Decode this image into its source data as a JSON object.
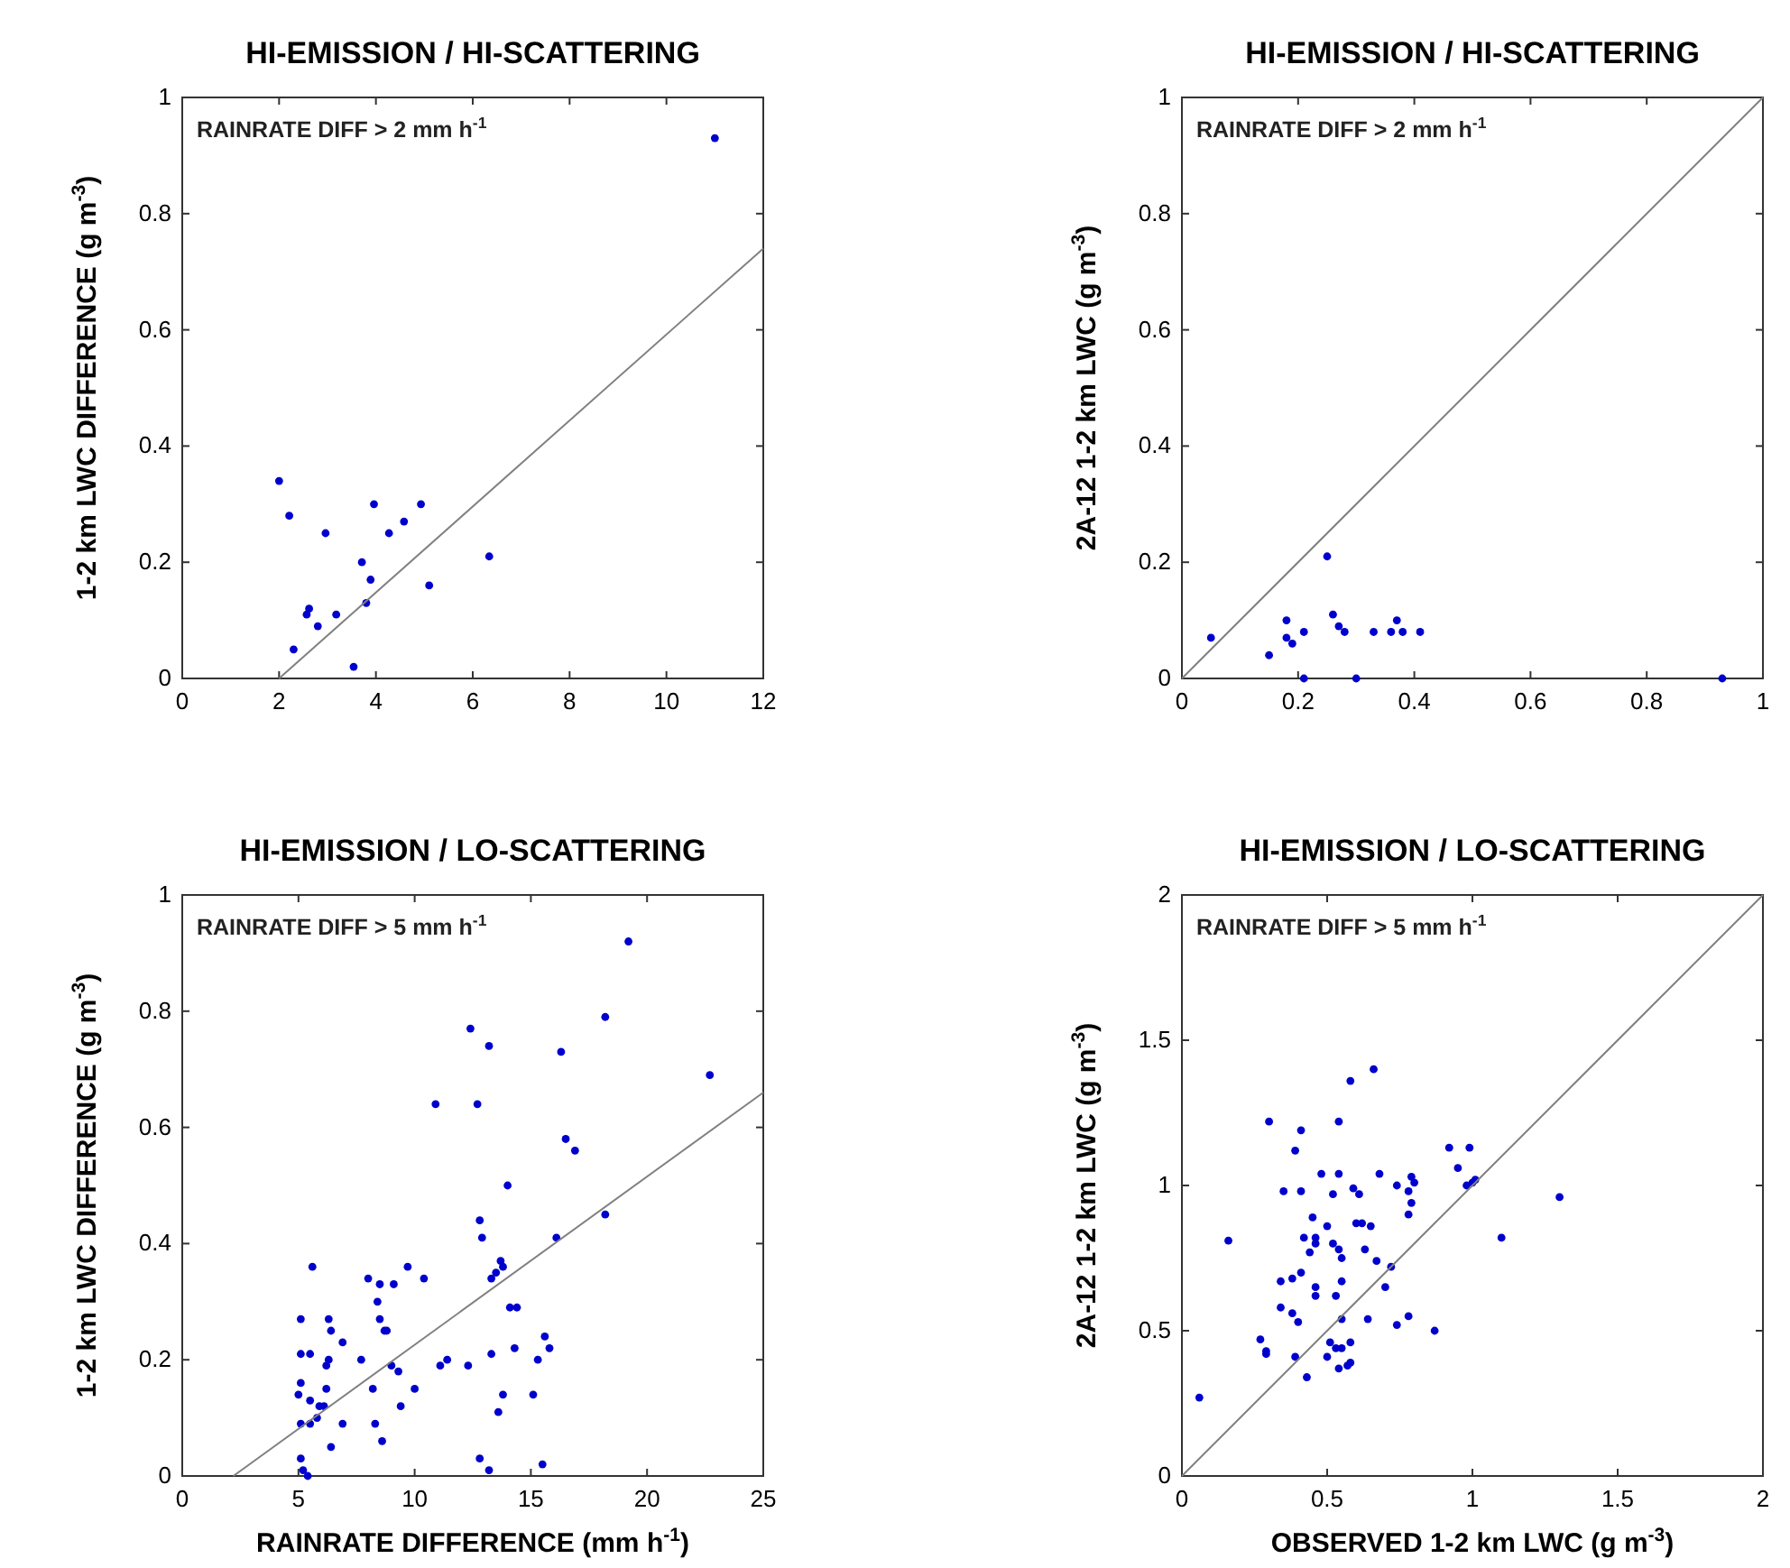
{
  "chart_data": [
    {
      "type": "scatter",
      "title": "HI-EMISSION / HI-SCATTERING",
      "ylabel": "1-2 km LWC DIFFERENCE (g m$^{-3}$)",
      "annotations": [
        "RAINRATE DIFF > 2 mm h$^{-1}$"
      ],
      "xlim": [
        0,
        12
      ],
      "ylim": [
        0,
        1
      ],
      "xticks": [
        0,
        2,
        4,
        6,
        8,
        10,
        12
      ],
      "yticks": [
        0,
        0.2,
        0.4,
        0.6,
        0.8,
        1
      ],
      "series": [
        {
          "marker": "circle",
          "color": "#0000cc",
          "x": [
            2.0,
            2.21,
            2.96,
            3.96,
            4.93,
            4.27,
            4.58,
            3.71,
            3.89,
            6.34,
            5.1,
            3.8,
            2.62,
            2.57,
            3.18,
            2.8,
            2.3,
            3.54,
            11.0
          ],
          "values": [
            0.34,
            0.28,
            0.25,
            0.3,
            0.3,
            0.25,
            0.27,
            0.2,
            0.17,
            0.21,
            0.16,
            0.13,
            0.12,
            0.11,
            0.11,
            0.09,
            0.05,
            0.02,
            0.93
          ]
        },
        {
          "type": "line",
          "color": "#808080",
          "x": [
            2,
            12
          ],
          "values": [
            0,
            0.74
          ]
        }
      ]
    },
    {
      "type": "scatter",
      "title": "HI-EMISSION / HI-SCATTERING",
      "ylabel": "2A-12 1-2 km LWC (g m$^{-3}$)",
      "annotations": [
        "RAINRATE DIFF > 2 mm h$^{-1}$"
      ],
      "xlim": [
        0,
        1
      ],
      "ylim": [
        0,
        1
      ],
      "xticks": [
        0,
        0.2,
        0.4,
        0.6,
        0.8,
        1
      ],
      "yticks": [
        0,
        0.2,
        0.4,
        0.6,
        0.8,
        1
      ],
      "series": [
        {
          "marker": "circle",
          "color": "#0000cc",
          "x": [
            0.05,
            0.15,
            0.18,
            0.18,
            0.19,
            0.21,
            0.25,
            0.26,
            0.27,
            0.28,
            0.33,
            0.36,
            0.37,
            0.38,
            0.41,
            0.21,
            0.3,
            0.93
          ],
          "values": [
            0.07,
            0.04,
            0.1,
            0.07,
            0.06,
            0.08,
            0.21,
            0.11,
            0.09,
            0.08,
            0.08,
            0.08,
            0.1,
            0.08,
            0.08,
            0.0,
            0.0,
            0.0
          ]
        },
        {
          "type": "line",
          "color": "#808080",
          "x": [
            0,
            1
          ],
          "values": [
            0,
            1
          ]
        }
      ]
    },
    {
      "type": "scatter",
      "title": "HI-EMISSION / LO-SCATTERING",
      "xlabel": "RAINRATE DIFFERENCE (mm h$^{-1}$)",
      "ylabel": "1-2 km LWC DIFFERENCE (g m$^{-3}$)",
      "annotations": [
        "RAINRATE DIFF > 5 mm h$^{-1}$"
      ],
      "xlim": [
        0,
        25
      ],
      "ylim": [
        0,
        1
      ],
      "xticks": [
        0,
        5,
        10,
        15,
        20,
        25
      ],
      "yticks": [
        0,
        0.2,
        0.4,
        0.6,
        0.8,
        1
      ],
      "series": [
        {
          "marker": "circle",
          "color": "#0000cc",
          "x": [
            19.2,
            12.4,
            13.2,
            18.2,
            16.3,
            22.7,
            10.9,
            12.7,
            16.5,
            16.9,
            14.0,
            18.2,
            12.8,
            12.9,
            16.1,
            5.6,
            9.7,
            13.7,
            13.8,
            13.5,
            13.3,
            8.0,
            8.5,
            9.1,
            10.4,
            8.4,
            5.1,
            6.3,
            8.5,
            14.1,
            14.4,
            6.4,
            6.9,
            8.7,
            8.8,
            5.1,
            5.5,
            6.3,
            7.7,
            6.2,
            9.0,
            9.3,
            11.1,
            11.4,
            12.3,
            13.3,
            14.3,
            15.6,
            15.8,
            15.3,
            5.1,
            5.0,
            6.2,
            8.2,
            10.0,
            5.5,
            5.9,
            6.1,
            5.8,
            5.1,
            5.5,
            9.4,
            6.9,
            8.3,
            13.8,
            13.6,
            15.1,
            6.4,
            8.6,
            5.1,
            5.2,
            5.4,
            12.8,
            13.2,
            15.5
          ],
          "values": [
            0.92,
            0.77,
            0.74,
            0.79,
            0.73,
            0.69,
            0.64,
            0.64,
            0.58,
            0.56,
            0.5,
            0.45,
            0.44,
            0.41,
            0.41,
            0.36,
            0.36,
            0.37,
            0.36,
            0.35,
            0.34,
            0.34,
            0.33,
            0.33,
            0.34,
            0.3,
            0.27,
            0.27,
            0.27,
            0.29,
            0.29,
            0.25,
            0.23,
            0.25,
            0.25,
            0.21,
            0.21,
            0.2,
            0.2,
            0.19,
            0.19,
            0.18,
            0.19,
            0.2,
            0.19,
            0.21,
            0.22,
            0.24,
            0.22,
            0.2,
            0.16,
            0.14,
            0.15,
            0.15,
            0.15,
            0.13,
            0.12,
            0.12,
            0.1,
            0.09,
            0.09,
            0.12,
            0.09,
            0.09,
            0.14,
            0.11,
            0.14,
            0.05,
            0.06,
            0.03,
            0.01,
            0.0,
            0.03,
            0.01,
            0.02
          ]
        },
        {
          "type": "line",
          "color": "#808080",
          "x": [
            2.2,
            25
          ],
          "values": [
            0,
            0.66
          ]
        }
      ]
    },
    {
      "type": "scatter",
      "title": "HI-EMISSION / LO-SCATTERING",
      "xlabel": "OBSERVED 1-2 km LWC (g m$^{-3}$)",
      "ylabel": "2A-12 1-2 km LWC (g m$^{-3}$)",
      "annotations": [
        "RAINRATE DIFF > 5 mm h$^{-1}$"
      ],
      "xlim": [
        0,
        2
      ],
      "ylim": [
        0,
        2
      ],
      "xticks": [
        0,
        0.5,
        1,
        1.5,
        2
      ],
      "yticks": [
        0,
        0.5,
        1,
        1.5,
        2
      ],
      "series": [
        {
          "marker": "circle",
          "color": "#0000cc",
          "x": [
            0.66,
            0.58,
            0.3,
            0.54,
            0.41,
            0.39,
            0.92,
            0.99,
            0.95,
            0.48,
            0.54,
            0.68,
            0.79,
            0.8,
            0.74,
            0.98,
            1.0,
            1.01,
            0.35,
            0.41,
            0.52,
            0.59,
            0.61,
            0.78,
            1.3,
            0.79,
            0.78,
            0.45,
            0.6,
            0.62,
            0.65,
            0.5,
            0.16,
            0.42,
            0.46,
            0.46,
            0.52,
            0.54,
            0.63,
            1.1,
            0.44,
            0.55,
            0.67,
            0.41,
            0.72,
            0.34,
            0.38,
            0.46,
            0.46,
            0.53,
            0.55,
            0.7,
            0.34,
            0.38,
            0.4,
            0.55,
            0.64,
            0.74,
            0.78,
            0.87,
            0.27,
            0.29,
            0.29,
            0.39,
            0.51,
            0.53,
            0.55,
            0.58,
            0.5,
            0.54,
            0.57,
            0.58,
            0.43,
            0.06
          ],
          "values": [
            1.4,
            1.36,
            1.22,
            1.22,
            1.19,
            1.12,
            1.13,
            1.13,
            1.06,
            1.04,
            1.04,
            1.04,
            1.03,
            1.01,
            1.0,
            1.0,
            1.01,
            1.02,
            0.98,
            0.98,
            0.97,
            0.99,
            0.97,
            0.98,
            0.96,
            0.94,
            0.9,
            0.89,
            0.87,
            0.87,
            0.86,
            0.86,
            0.81,
            0.82,
            0.82,
            0.8,
            0.8,
            0.78,
            0.78,
            0.82,
            0.77,
            0.75,
            0.74,
            0.7,
            0.72,
            0.67,
            0.68,
            0.65,
            0.62,
            0.62,
            0.67,
            0.65,
            0.58,
            0.56,
            0.53,
            0.54,
            0.54,
            0.52,
            0.55,
            0.5,
            0.47,
            0.43,
            0.42,
            0.41,
            0.46,
            0.44,
            0.44,
            0.46,
            0.41,
            0.37,
            0.38,
            0.39,
            0.34,
            0.27
          ]
        },
        {
          "type": "line",
          "color": "#808080",
          "x": [
            0,
            2
          ],
          "values": [
            0,
            2
          ]
        }
      ]
    }
  ]
}
